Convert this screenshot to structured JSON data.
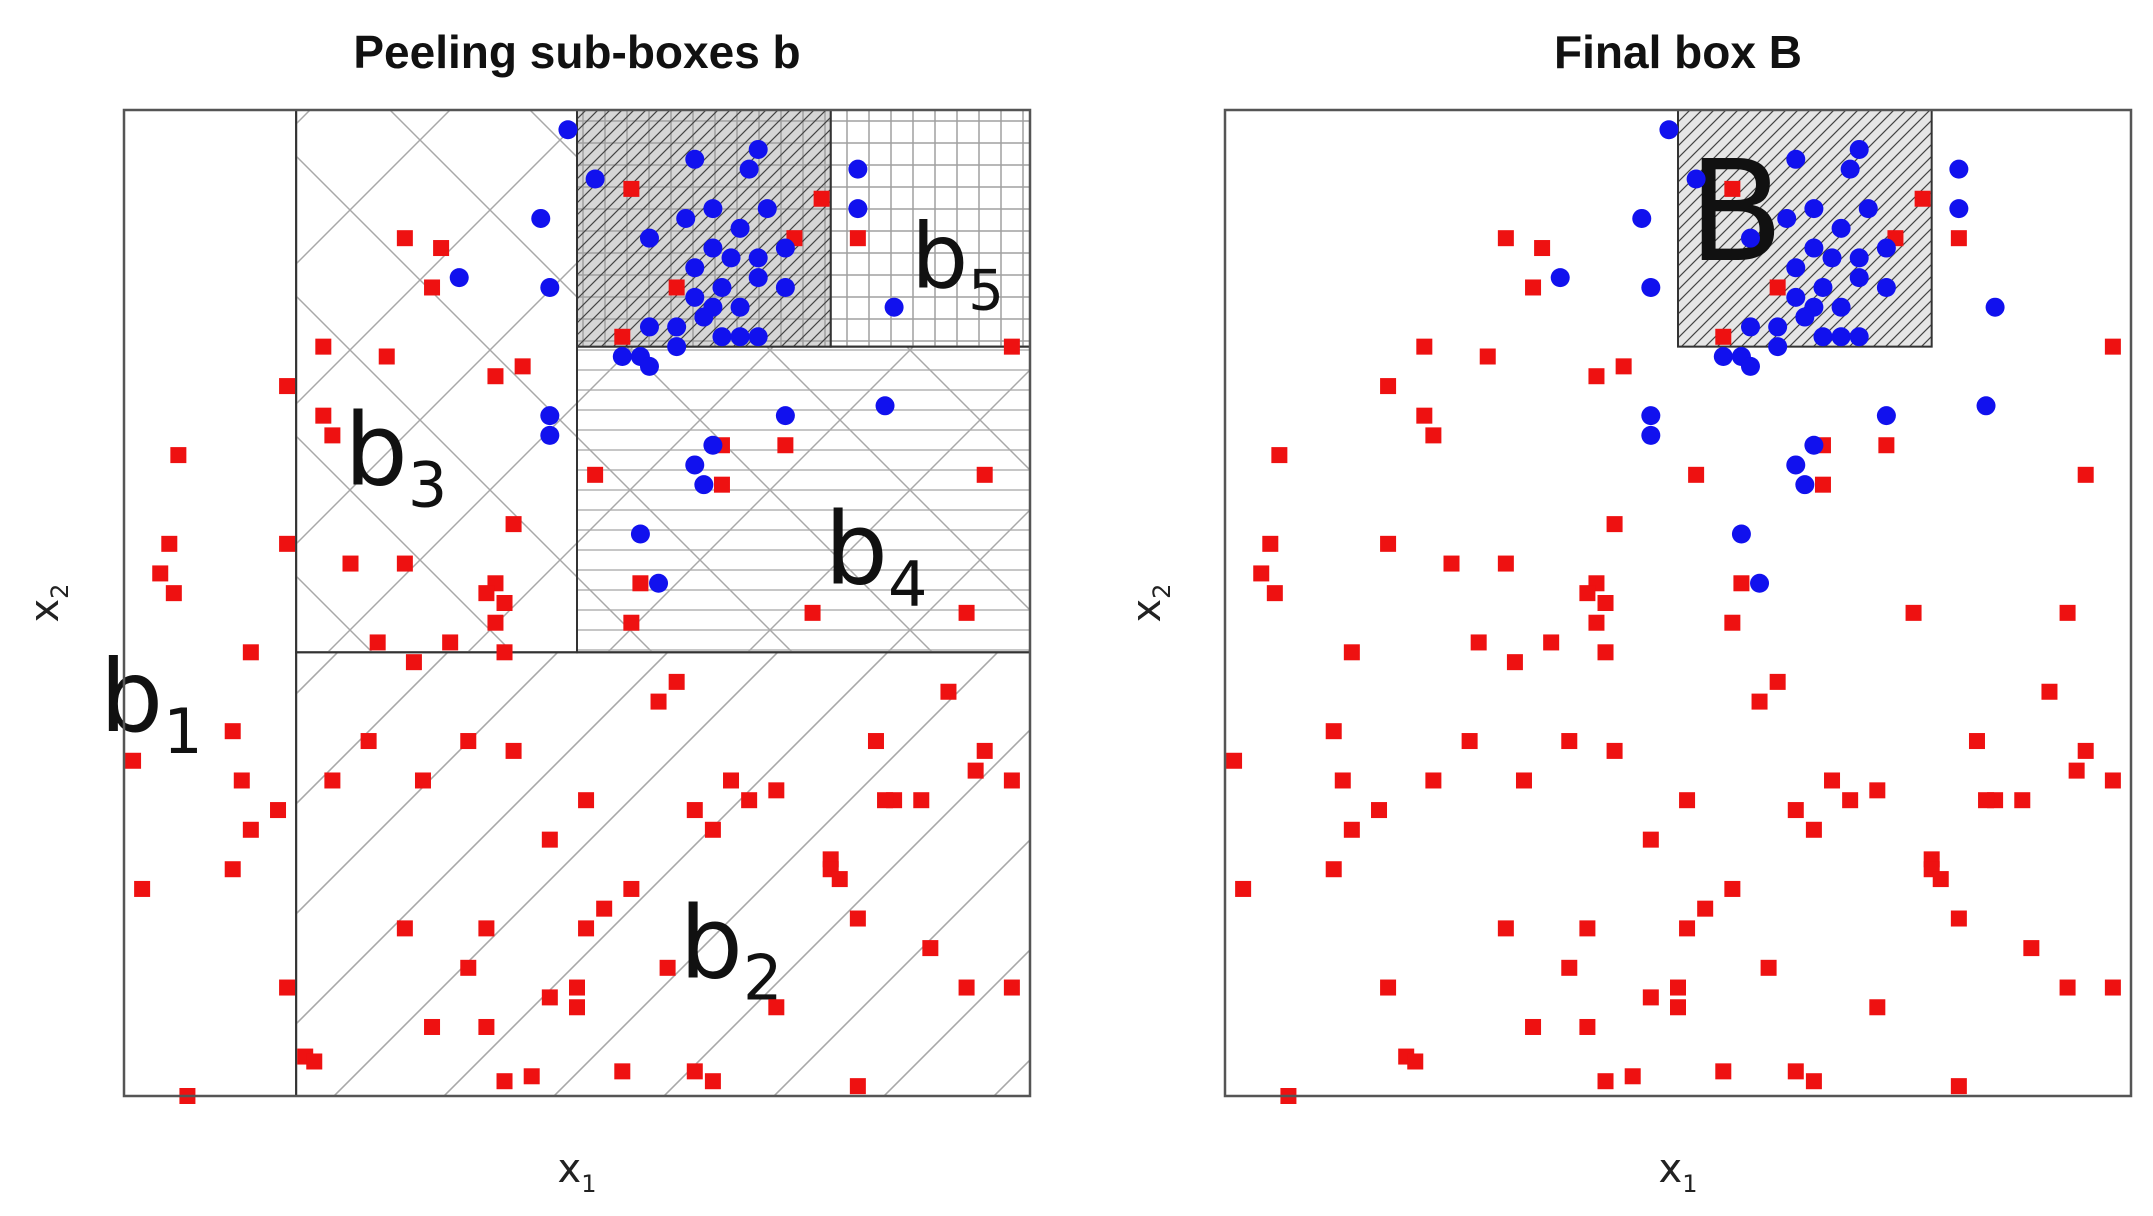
{
  "colors": {
    "class_a": "#ee1111",
    "class_b": "#1111ee",
    "frame": "#555555",
    "hatch": "#a8a8a8",
    "box_fill": "#d6d6d6"
  },
  "chart_data": [
    {
      "type": "scatter",
      "title": "Peeling sub-boxes b",
      "xlabel": {
        "main": "x",
        "sub": "1"
      },
      "ylabel": {
        "main": "x",
        "sub": "2"
      },
      "xlim": [
        0,
        1
      ],
      "ylim": [
        0,
        1
      ],
      "grid": false,
      "boxes": [
        {
          "main": "b",
          "sub": "1",
          "x": [
            0.0,
            0.19
          ],
          "y": [
            0.0,
            1.0
          ],
          "pattern": "none"
        },
        {
          "main": "b",
          "sub": "2",
          "x": [
            0.19,
            1.0
          ],
          "y": [
            0.0,
            0.45
          ],
          "pattern": "diag"
        },
        {
          "main": "b",
          "sub": "3",
          "x": [
            0.19,
            0.5
          ],
          "y": [
            0.45,
            1.0
          ],
          "pattern": "cross"
        },
        {
          "main": "b",
          "sub": "4",
          "x": [
            0.5,
            1.0
          ],
          "y": [
            0.45,
            0.76
          ],
          "pattern": "cross-h"
        },
        {
          "main": "b",
          "sub": "5",
          "x": [
            0.78,
            1.0
          ],
          "y": [
            0.76,
            1.0
          ],
          "pattern": "grid"
        },
        {
          "main": "",
          "sub": "",
          "x": [
            0.5,
            0.78
          ],
          "y": [
            0.76,
            1.0
          ],
          "pattern": "final"
        }
      ],
      "series_red": [
        [
          0.06,
          0.65
        ],
        [
          0.05,
          0.56
        ],
        [
          0.04,
          0.53
        ],
        [
          0.055,
          0.51
        ],
        [
          0.18,
          0.72
        ],
        [
          0.18,
          0.56
        ],
        [
          0.14,
          0.45
        ],
        [
          0.12,
          0.37
        ],
        [
          0.13,
          0.32
        ],
        [
          0.01,
          0.34
        ],
        [
          0.17,
          0.29
        ],
        [
          0.14,
          0.27
        ],
        [
          0.12,
          0.23
        ],
        [
          0.02,
          0.21
        ],
        [
          0.18,
          0.11
        ],
        [
          0.2,
          0.04
        ],
        [
          0.21,
          0.035
        ],
        [
          0.07,
          0.0
        ],
        [
          0.31,
          0.87
        ],
        [
          0.35,
          0.86
        ],
        [
          0.34,
          0.82
        ],
        [
          0.22,
          0.76
        ],
        [
          0.29,
          0.75
        ],
        [
          0.22,
          0.69
        ],
        [
          0.23,
          0.67
        ],
        [
          0.41,
          0.73
        ],
        [
          0.44,
          0.74
        ],
        [
          0.43,
          0.58
        ],
        [
          0.25,
          0.54
        ],
        [
          0.31,
          0.54
        ],
        [
          0.41,
          0.52
        ],
        [
          0.4,
          0.51
        ],
        [
          0.42,
          0.5
        ],
        [
          0.41,
          0.48
        ],
        [
          0.42,
          0.45
        ],
        [
          0.28,
          0.46
        ],
        [
          0.32,
          0.44
        ],
        [
          0.36,
          0.46
        ],
        [
          0.61,
          0.82
        ],
        [
          0.56,
          0.92
        ],
        [
          0.77,
          0.91
        ],
        [
          0.74,
          0.87
        ],
        [
          0.81,
          0.87
        ],
        [
          0.55,
          0.77
        ],
        [
          0.98,
          0.76
        ],
        [
          0.52,
          0.63
        ],
        [
          0.66,
          0.66
        ],
        [
          0.73,
          0.66
        ],
        [
          0.66,
          0.62
        ],
        [
          0.95,
          0.63
        ],
        [
          0.57,
          0.52
        ],
        [
          0.76,
          0.49
        ],
        [
          0.93,
          0.49
        ],
        [
          0.56,
          0.48
        ],
        [
          0.61,
          0.42
        ],
        [
          0.59,
          0.4
        ],
        [
          0.91,
          0.41
        ],
        [
          0.38,
          0.36
        ],
        [
          0.27,
          0.36
        ],
        [
          0.33,
          0.32
        ],
        [
          0.23,
          0.32
        ],
        [
          0.43,
          0.35
        ],
        [
          0.51,
          0.3
        ],
        [
          0.67,
          0.32
        ],
        [
          0.85,
          0.3
        ],
        [
          0.83,
          0.36
        ],
        [
          0.95,
          0.35
        ],
        [
          0.94,
          0.33
        ],
        [
          0.88,
          0.3
        ],
        [
          0.98,
          0.32
        ],
        [
          0.69,
          0.3
        ],
        [
          0.72,
          0.31
        ],
        [
          0.84,
          0.3
        ],
        [
          0.63,
          0.29
        ],
        [
          0.65,
          0.27
        ],
        [
          0.47,
          0.26
        ],
        [
          0.78,
          0.24
        ],
        [
          0.78,
          0.23
        ],
        [
          0.79,
          0.22
        ],
        [
          0.81,
          0.18
        ],
        [
          0.56,
          0.21
        ],
        [
          0.53,
          0.19
        ],
        [
          0.51,
          0.17
        ],
        [
          0.31,
          0.17
        ],
        [
          0.4,
          0.17
        ],
        [
          0.6,
          0.13
        ],
        [
          0.89,
          0.15
        ],
        [
          0.93,
          0.11
        ],
        [
          0.98,
          0.11
        ],
        [
          0.72,
          0.09
        ],
        [
          0.38,
          0.13
        ],
        [
          0.5,
          0.11
        ],
        [
          0.47,
          0.1
        ],
        [
          0.5,
          0.09
        ],
        [
          0.4,
          0.07
        ],
        [
          0.34,
          0.07
        ],
        [
          0.45,
          0.02
        ],
        [
          0.42,
          0.015
        ],
        [
          0.55,
          0.025
        ],
        [
          0.63,
          0.025
        ],
        [
          0.65,
          0.015
        ],
        [
          0.81,
          0.01
        ]
      ],
      "series_blue": [
        [
          0.49,
          0.98
        ],
        [
          0.52,
          0.93
        ],
        [
          0.46,
          0.89
        ],
        [
          0.47,
          0.82
        ],
        [
          0.37,
          0.83
        ],
        [
          0.63,
          0.95
        ],
        [
          0.69,
          0.94
        ],
        [
          0.7,
          0.96
        ],
        [
          0.62,
          0.89
        ],
        [
          0.65,
          0.9
        ],
        [
          0.68,
          0.88
        ],
        [
          0.71,
          0.9
        ],
        [
          0.58,
          0.87
        ],
        [
          0.65,
          0.86
        ],
        [
          0.67,
          0.85
        ],
        [
          0.7,
          0.85
        ],
        [
          0.73,
          0.86
        ],
        [
          0.63,
          0.84
        ],
        [
          0.66,
          0.82
        ],
        [
          0.7,
          0.83
        ],
        [
          0.65,
          0.8
        ],
        [
          0.63,
          0.81
        ],
        [
          0.68,
          0.8
        ],
        [
          0.73,
          0.82
        ],
        [
          0.61,
          0.78
        ],
        [
          0.64,
          0.79
        ],
        [
          0.66,
          0.77
        ],
        [
          0.58,
          0.78
        ],
        [
          0.68,
          0.77
        ],
        [
          0.7,
          0.77
        ],
        [
          0.61,
          0.76
        ],
        [
          0.55,
          0.75
        ],
        [
          0.57,
          0.75
        ],
        [
          0.58,
          0.74
        ],
        [
          0.85,
          0.8
        ],
        [
          0.81,
          0.94
        ],
        [
          0.81,
          0.9
        ],
        [
          0.47,
          0.69
        ],
        [
          0.47,
          0.67
        ],
        [
          0.73,
          0.69
        ],
        [
          0.84,
          0.7
        ],
        [
          0.65,
          0.66
        ],
        [
          0.63,
          0.64
        ],
        [
          0.64,
          0.62
        ],
        [
          0.57,
          0.57
        ],
        [
          0.59,
          0.52
        ]
      ]
    },
    {
      "type": "scatter",
      "title": "Final box B",
      "xlabel": {
        "main": "x",
        "sub": "1"
      },
      "ylabel": {
        "main": "x",
        "sub": "2"
      },
      "xlim": [
        0,
        1
      ],
      "ylim": [
        0,
        1
      ],
      "grid": false,
      "box": {
        "label": "B",
        "x": [
          0.5,
          0.78
        ],
        "y": [
          0.76,
          1.0
        ]
      },
      "same_points_as": 0
    }
  ]
}
